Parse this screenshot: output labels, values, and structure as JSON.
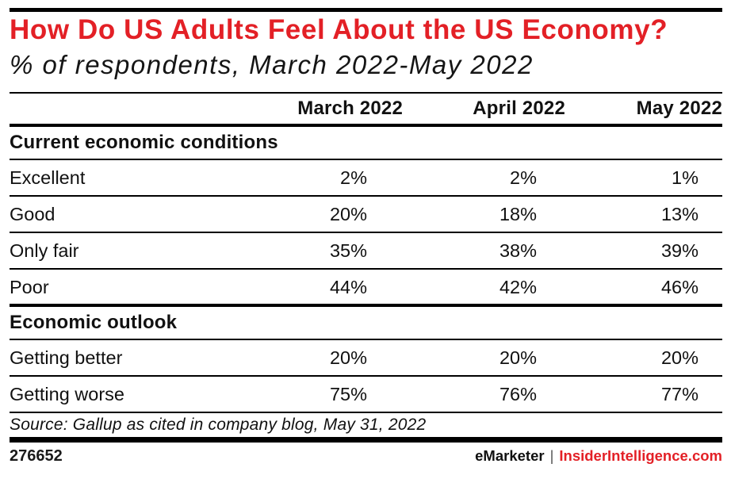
{
  "title": "How Do US Adults Feel About the US Economy?",
  "subtitle": "% of respondents, March 2022-May 2022",
  "source": "Source: Gallup as cited in company blog, May 31, 2022",
  "footer": {
    "chart_id": "276652",
    "brand_left": "eMarketer",
    "separator": "|",
    "brand_right": "InsiderIntelligence.com"
  },
  "colors": {
    "accent_red": "#e32026",
    "text": "#111111",
    "rule": "#000000"
  },
  "chart_data": {
    "type": "table",
    "title": "How Do US Adults Feel About the US Economy?",
    "subtitle": "% of respondents, March 2022-May 2022",
    "columns": [
      "March 2022",
      "April 2022",
      "May 2022"
    ],
    "sections": [
      {
        "label": "Current economic conditions",
        "rows": [
          {
            "label": "Excellent",
            "values": [
              "2%",
              "2%",
              "1%"
            ]
          },
          {
            "label": "Good",
            "values": [
              "20%",
              "18%",
              "13%"
            ]
          },
          {
            "label": "Only fair",
            "values": [
              "35%",
              "38%",
              "39%"
            ]
          },
          {
            "label": "Poor",
            "values": [
              "44%",
              "42%",
              "46%"
            ]
          }
        ]
      },
      {
        "label": "Economic outlook",
        "rows": [
          {
            "label": "Getting better",
            "values": [
              "20%",
              "20%",
              "20%"
            ]
          },
          {
            "label": "Getting worse",
            "values": [
              "75%",
              "76%",
              "77%"
            ]
          }
        ]
      }
    ],
    "source": "Source: Gallup as cited in company blog, May 31, 2022"
  }
}
